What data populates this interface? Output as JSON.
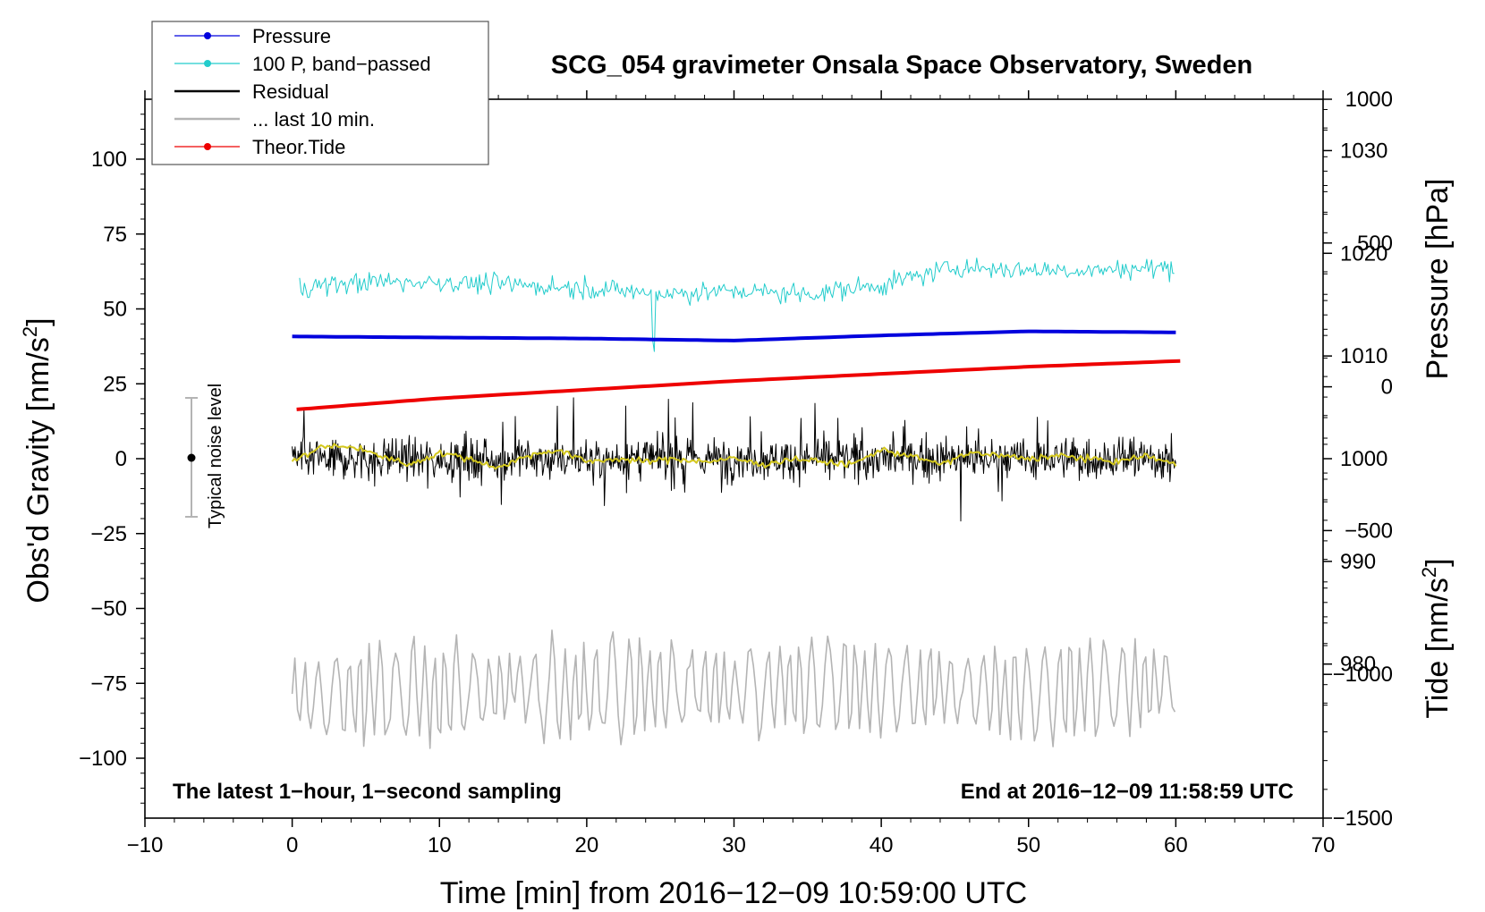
{
  "chart_data": {
    "type": "line",
    "title": "SCG_054 gravimeter Onsala Space Observatory, Sweden",
    "xlabel": "Time [min] from 2016−12−09 10:59:00 UTC",
    "ylabel_main": "Obs'd Gravity [nm/s",
    "ylabel_main_sup": "2",
    "ylabel_main_end": "]",
    "ylabel_pressure": "Pressure [hPa]",
    "ylabel_tide": "Tide [nm/s",
    "ylabel_tide_sup": "2",
    "ylabel_tide_end": "]",
    "xlim": [
      -10,
      70
    ],
    "ylim": [
      -120,
      120
    ],
    "pressure_ylim": [
      965,
      1035
    ],
    "tide_ylim": [
      -1500,
      1000
    ],
    "x_ticks": [
      -10,
      0,
      10,
      20,
      30,
      40,
      50,
      60,
      70
    ],
    "x_tick_labels": [
      "−10",
      "0",
      "10",
      "20",
      "30",
      "40",
      "50",
      "60",
      "70"
    ],
    "y_ticks": [
      100,
      75,
      50,
      25,
      0,
      -25,
      -50,
      -75,
      -100
    ],
    "y_tick_labels": [
      "100",
      "75",
      "50",
      "25",
      "0",
      "−25",
      "−50",
      "−75",
      "−100"
    ],
    "pressure_ticks": [
      1030,
      1020,
      1010,
      1000,
      990,
      980
    ],
    "pressure_tick_labels": [
      "1030",
      "1020",
      "1010",
      "1000",
      "990",
      "980"
    ],
    "tide_ticks": [
      1000,
      500,
      0,
      -500,
      -1000,
      -1500
    ],
    "tide_tick_labels": [
      "1000",
      "500",
      "0",
      "−500",
      "−1000",
      "−1500"
    ],
    "legend": [
      {
        "label": "Pressure",
        "color": "#0000dd",
        "marker": true
      },
      {
        "label": "100 P, band−passed",
        "color": "#22cccc",
        "marker": true
      },
      {
        "label": "Residual",
        "color": "#000000",
        "marker": false
      },
      {
        "label": "... last 10 min.",
        "color": "#b4b4b4",
        "marker": false
      },
      {
        "label": "Theor.Tide",
        "color": "#ee0000",
        "marker": true
      }
    ],
    "noise_label": "Typical noise level",
    "noise_range": [
      -20,
      20
    ],
    "footer_left": "The latest 1−hour, 1−second sampling",
    "footer_right": "End at 2016−12−09 11:58:59 UTC",
    "series": [
      {
        "name": "Pressure",
        "axis": "pressure",
        "color": "#0000dd",
        "x": [
          0,
          10,
          20,
          30,
          40,
          50,
          60
        ],
        "values": [
          1011.9,
          1011.8,
          1011.7,
          1011.5,
          1012.0,
          1012.4,
          1012.3
        ]
      },
      {
        "name": "100 P, band-passed",
        "axis": "main",
        "color": "#22cccc",
        "x": [
          0,
          5,
          10,
          15,
          20,
          25,
          30,
          35,
          40,
          45,
          50,
          55,
          60
        ],
        "values": [
          57,
          59,
          59,
          58,
          57,
          55,
          56,
          55,
          58,
          64,
          63,
          63,
          64
        ]
      },
      {
        "name": "Residual",
        "axis": "main",
        "color": "#000000",
        "x": [
          0,
          10,
          20,
          30,
          40,
          50,
          60
        ],
        "values": [
          0,
          0,
          0,
          0,
          0,
          0,
          0
        ]
      },
      {
        "name": "Residual smoothed",
        "axis": "main",
        "color": "#d4c81e",
        "x": [
          0,
          2,
          4,
          6,
          8,
          10,
          12,
          14,
          16,
          18,
          20,
          22,
          24,
          26,
          28,
          30,
          32,
          34,
          36,
          38,
          40,
          42,
          44,
          46,
          48,
          50,
          52,
          54,
          56,
          58,
          60
        ],
        "values": [
          -1,
          4,
          4,
          1,
          -2,
          2,
          0,
          -3,
          1,
          3,
          -1,
          0,
          -1,
          0,
          -1,
          0,
          -2,
          0,
          -1,
          -2,
          3,
          1,
          -2,
          2,
          1,
          0,
          1,
          0,
          -1,
          1,
          -2
        ]
      },
      {
        "name": "... last 10 min.",
        "axis": "main",
        "color": "#b4b4b4",
        "x": [
          0,
          10,
          20,
          30,
          40,
          50,
          60
        ],
        "values": [
          -80,
          -78,
          -77,
          -76,
          -76,
          -78,
          -75
        ]
      },
      {
        "name": "Theor.Tide",
        "axis": "tide",
        "color": "#ee0000",
        "x": [
          0,
          10,
          20,
          30,
          40,
          50,
          60.4
        ],
        "values": [
          -80,
          -40,
          -10,
          20,
          45,
          70,
          90
        ]
      }
    ]
  }
}
